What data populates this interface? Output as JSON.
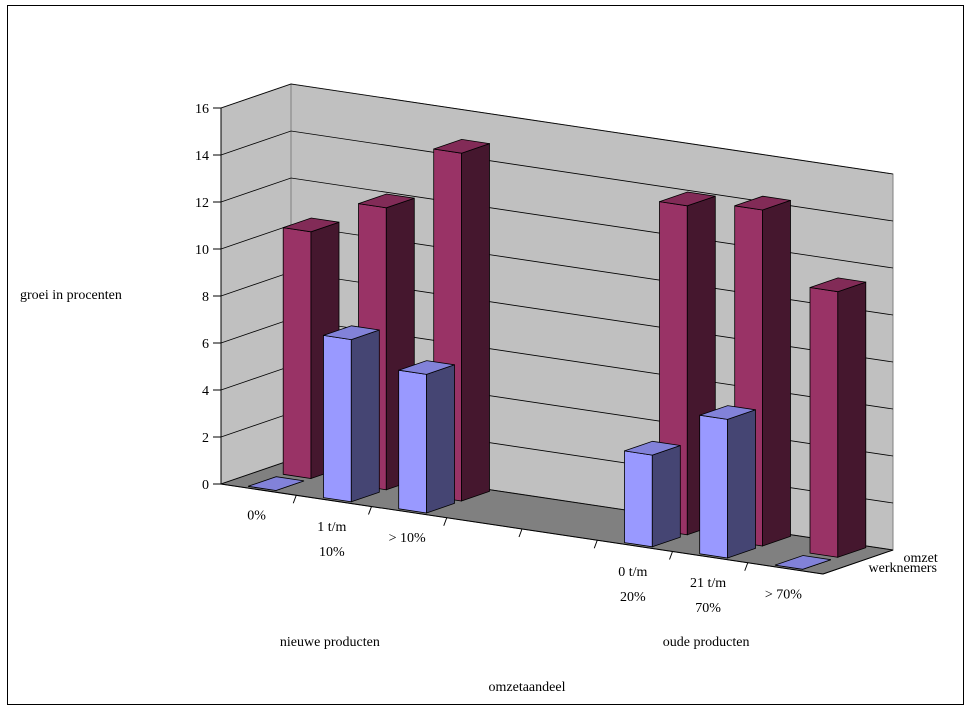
{
  "chart_data": {
    "type": "bar",
    "title": "",
    "ylabel": "groei in procenten",
    "xlabel": "omzetaandeel",
    "ylim": [
      0,
      16
    ],
    "yticks": [
      "0",
      "2",
      "4",
      "6",
      "8",
      "10",
      "12",
      "14",
      "16"
    ],
    "categories": [
      {
        "lines": [
          "0%"
        ],
        "group": "nieuwe producten"
      },
      {
        "lines": [
          "1 t/m",
          "10%"
        ],
        "group": "nieuwe producten"
      },
      {
        "lines": [
          "> 10%"
        ],
        "group": "nieuwe producten"
      },
      {
        "lines": [
          "0 t/m",
          "20%"
        ],
        "group": "oude producten"
      },
      {
        "lines": [
          "21 t/m",
          "70%"
        ],
        "group": "oude producten"
      },
      {
        "lines": [
          "> 70%"
        ],
        "group": "oude producten"
      }
    ],
    "groups": [
      "nieuwe producten",
      "oude producten"
    ],
    "series": [
      {
        "name": "omzet",
        "color": "#993366",
        "values": [
          10.5,
          12.0,
          14.8,
          14.0,
          14.3,
          11.3
        ]
      },
      {
        "name": "werknemers",
        "color": "#9999FF",
        "values": [
          0.0,
          6.9,
          5.9,
          3.9,
          5.9,
          0.0
        ]
      }
    ]
  }
}
